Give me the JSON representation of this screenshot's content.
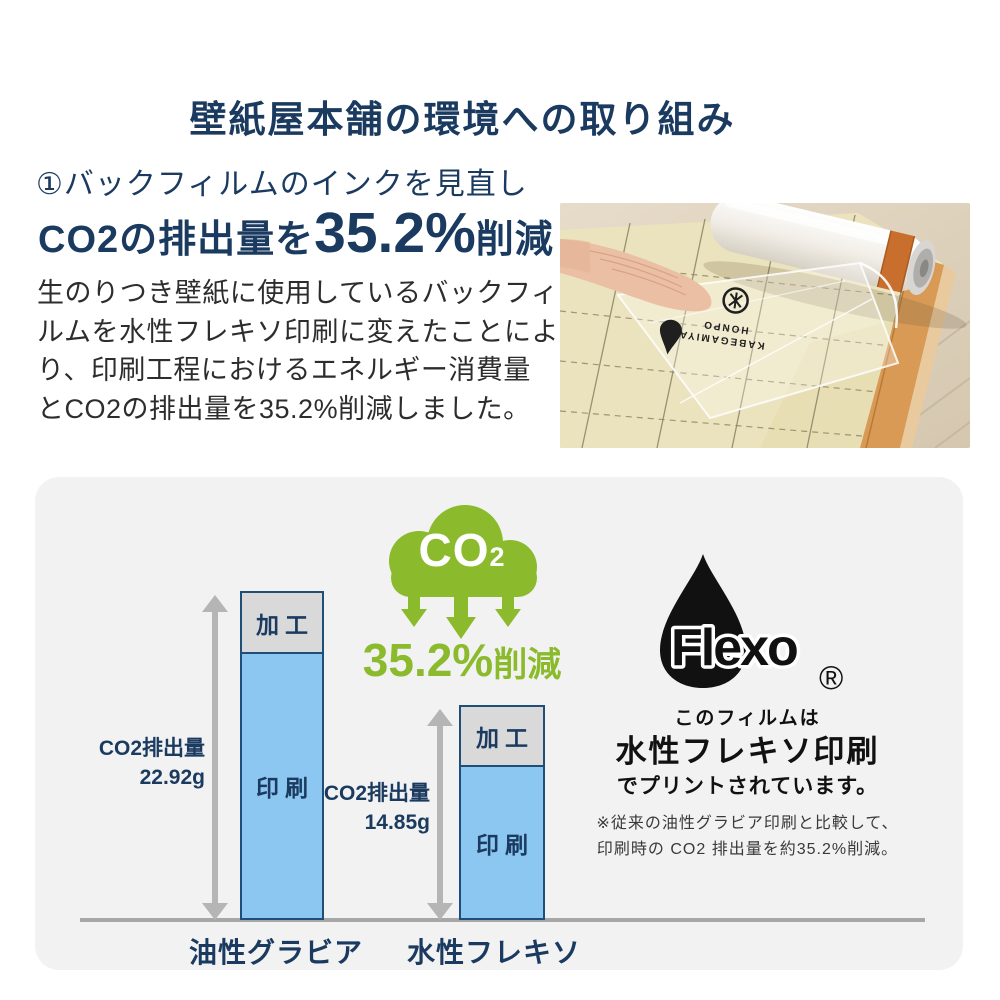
{
  "header": {
    "title": "壁紙屋本舗の環境への取り組み"
  },
  "intro": {
    "heading": "①バックフィルムのインクを見直し",
    "co2_statement": {
      "prefix": "CO2の排出量を",
      "highlight": "35.2%",
      "suffix": "削減"
    },
    "body_lines": [
      "生のりつき壁紙に使用しているバックフィ",
      "ルムを水性フレキソ印刷に変えたことによ",
      "り、印刷工程におけるエネルギー消費量",
      "とCO2の排出量を35.2%削減しました。"
    ]
  },
  "photo": {
    "description": "生のりつき壁紙のバックフィルムを手でめくっている写真（壁紙ロールと木目の床）",
    "print_line1": "KABEGAMIYA",
    "print_line2": "HONPO"
  },
  "chart_data": {
    "type": "bar",
    "subtype": "stacked",
    "categories": [
      "油性グラビア",
      "水性フレキソ"
    ],
    "series": [
      {
        "name": "印刷",
        "values": [
          18.62,
          10.62
        ],
        "color": "#8cc7f1"
      },
      {
        "name": "加工",
        "values": [
          4.3,
          4.23
        ],
        "color": "#d9d9d9"
      }
    ],
    "totals": [
      22.92,
      14.85
    ],
    "unit": "g",
    "annotations": [
      {
        "label": "CO2排出量",
        "value": "22.92g"
      },
      {
        "label": "CO2排出量",
        "value": "14.85g"
      }
    ],
    "badge": {
      "co2_main": "CO",
      "co2_sub": "2",
      "value": "35.2%",
      "suffix": "削減"
    },
    "xlabel": "",
    "ylabel": "",
    "legend_position": "none",
    "grid": false,
    "note": "棒は総排出量に比例。セグメント値は棒の比率からの推定、合計値はラベル表記どおり。"
  },
  "flexo": {
    "logo_text": "Flexo",
    "registered_mark": "®",
    "caption_line1": "このフィルムは",
    "caption_line2": "水性フレキソ印刷",
    "caption_line3": "でプリントされています。",
    "note_line1": "※従来の油性グラビア印刷と比較して、",
    "note_line2": "印刷時の CO2 排出量を約35.2%削減。"
  },
  "colors": {
    "navy": "#1a3a5f",
    "green": "#8bbb2c",
    "bar_blue": "#8cc7f1",
    "bar_gray": "#d9d9d9",
    "bar_border": "#1f4e79",
    "arrow_gray": "#b5b5b5",
    "axis_gray": "#a7a7a7",
    "panel_bg": "#f2f2f3",
    "text_dark": "#2d2d2d",
    "flexo_black": "#111111"
  }
}
